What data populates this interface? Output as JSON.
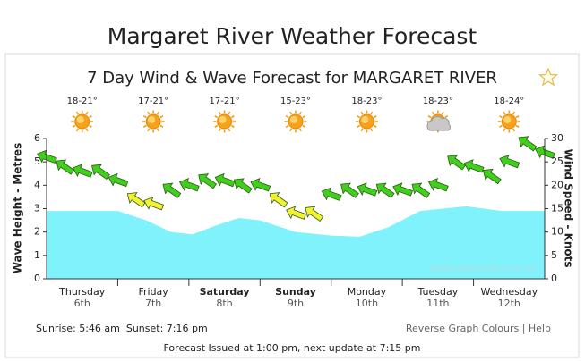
{
  "title": "Margaret River Weather Forecast",
  "chart_data": {
    "type": "wind-wave",
    "title": "7 Day Wind & Wave Forecast for MARGARET RIVER",
    "days": [
      {
        "name": "Thursday",
        "date": "6th",
        "temp": "18-21°",
        "icon": "sun",
        "bold": false
      },
      {
        "name": "Friday",
        "date": "7th",
        "temp": "17-21°",
        "icon": "sun",
        "bold": false
      },
      {
        "name": "Saturday",
        "date": "8th",
        "temp": "17-21°",
        "icon": "sun",
        "bold": true
      },
      {
        "name": "Sunday",
        "date": "9th",
        "temp": "15-23°",
        "icon": "sun",
        "bold": true
      },
      {
        "name": "Monday",
        "date": "10th",
        "temp": "18-23°",
        "icon": "sun",
        "bold": false
      },
      {
        "name": "Tuesday",
        "date": "11th",
        "temp": "18-23°",
        "icon": "cloud",
        "bold": false
      },
      {
        "name": "Wednesday",
        "date": "12th",
        "temp": "18-24°",
        "icon": "sun",
        "bold": false
      }
    ],
    "xlim": [
      0,
      7
    ],
    "ylim": [
      0,
      6
    ],
    "yticks": [
      0,
      1,
      2,
      3,
      4,
      5,
      6
    ],
    "ylabel": "Wave Height - Metres",
    "y2lim": [
      0,
      30
    ],
    "y2ticks": [
      0,
      5,
      10,
      15,
      20,
      25,
      30
    ],
    "y2label": "Wind Speed - Knots",
    "series": [
      {
        "color": "#80f2fc",
        "x": [
          0,
          0.5,
          1,
          1.4,
          1.75,
          2.05,
          2.4,
          2.7,
          3,
          3.5,
          4,
          4.4,
          4.8,
          5.25,
          5.9,
          6.4,
          7
        ],
        "values": [
          2.9,
          2.9,
          2.9,
          2.5,
          2.0,
          1.9,
          2.3,
          2.6,
          2.5,
          2.0,
          1.85,
          1.8,
          2.2,
          2.9,
          3.1,
          2.9,
          2.9
        ]
      },
      {
        "axis": "y2",
        "x": [
          0,
          0.25,
          0.5,
          0.75,
          1,
          1.25,
          1.5,
          1.75,
          2,
          2.25,
          2.5,
          2.75,
          3,
          3.25,
          3.5,
          3.75,
          4,
          4.25,
          4.5,
          4.75,
          5,
          5.25,
          5.5,
          5.75,
          6,
          6.25,
          6.5,
          6.75,
          7
        ],
        "values": [
          26,
          24,
          23,
          23,
          21,
          17,
          16,
          19,
          20,
          21,
          21,
          20,
          20,
          17,
          14,
          14,
          18,
          19,
          19,
          19,
          19,
          19,
          20,
          25,
          24,
          22,
          25,
          29,
          27
        ],
        "colors": [
          "#3fcf1c",
          "#3fcf1c",
          "#3fcf1c",
          "#3fcf1c",
          "#3fcf1c",
          "#f2f230",
          "#f2f230",
          "#3fcf1c",
          "#3fcf1c",
          "#3fcf1c",
          "#3fcf1c",
          "#3fcf1c",
          "#3fcf1c",
          "#f2f230",
          "#f2f230",
          "#f2f230",
          "#3fcf1c",
          "#3fcf1c",
          "#3fcf1c",
          "#3fcf1c",
          "#3fcf1c",
          "#3fcf1c",
          "#3fcf1c",
          "#3fcf1c",
          "#3fcf1c",
          "#3fcf1c",
          "#3fcf1c",
          "#3fcf1c",
          "#3fcf1c"
        ]
      }
    ],
    "watermark": "www.seabreeze.com.au"
  },
  "footer": {
    "sun_times": "Sunrise: 5:46 am  Sunset: 7:16 pm",
    "links": "Reverse Graph Colours | Help",
    "issued": "Forecast Issued at 1:00 pm, next update at 7:15 pm"
  }
}
